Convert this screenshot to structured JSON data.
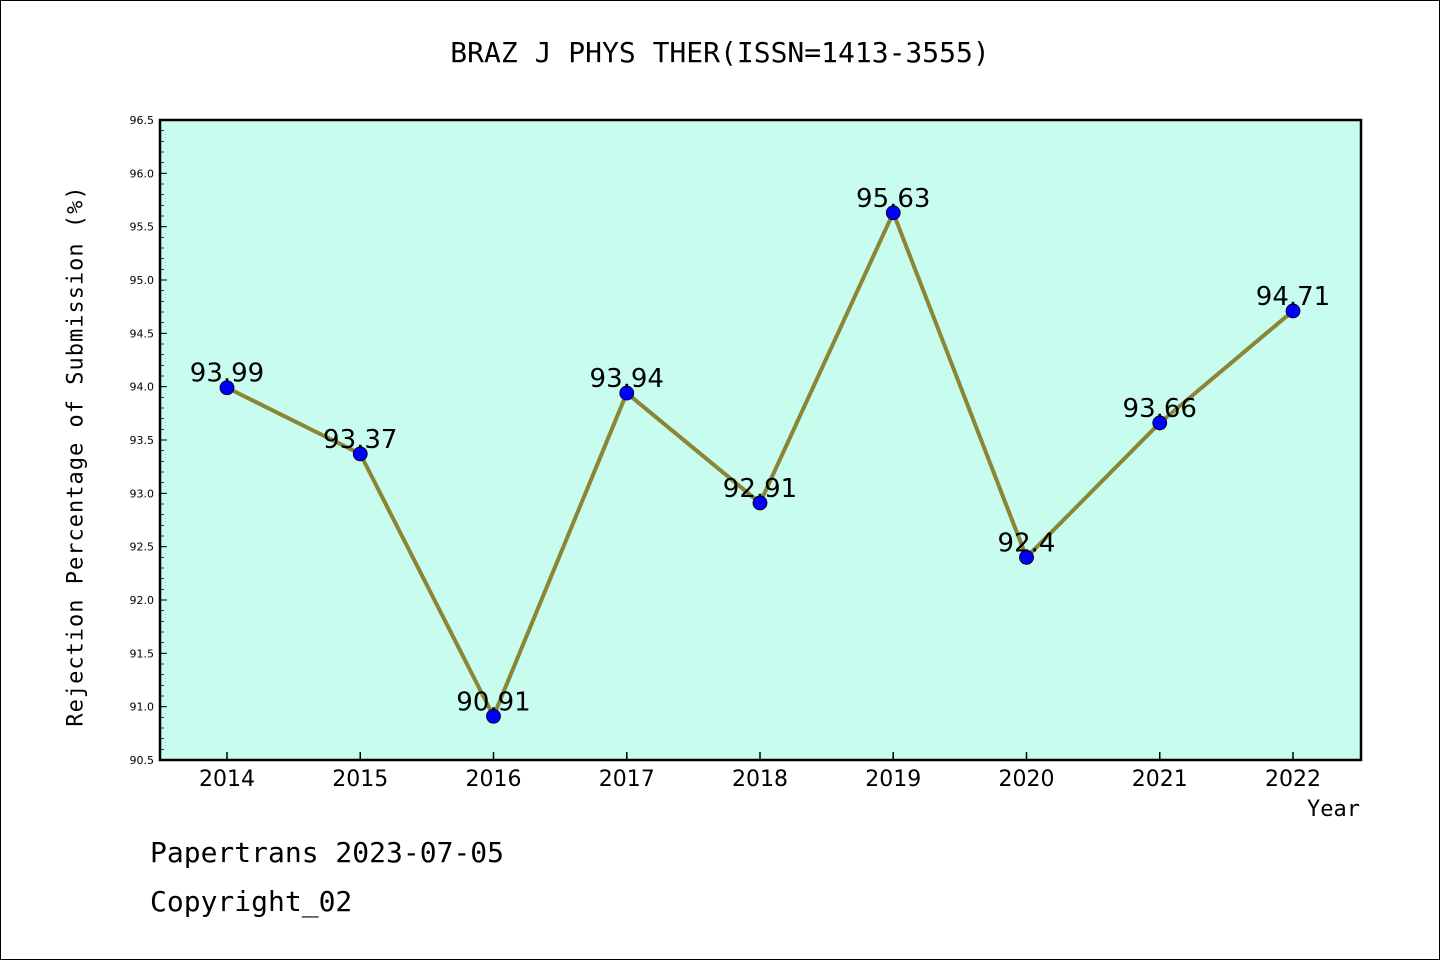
{
  "chart_data": {
    "type": "line",
    "title": "BRAZ J PHYS THER(ISSN=1413-3555)",
    "xlabel": "Year",
    "ylabel": "Rejection Percentage of Submission (%)",
    "x": [
      "2014",
      "2015",
      "2016",
      "2017",
      "2018",
      "2019",
      "2020",
      "2021",
      "2022"
    ],
    "values": [
      93.99,
      93.37,
      90.91,
      93.94,
      92.91,
      95.63,
      92.4,
      93.66,
      94.71
    ],
    "data_labels": [
      "93.99",
      "93.37",
      "90.91",
      "93.94",
      "92.91",
      "95.63",
      "92.4",
      "93.66",
      "94.71"
    ],
    "ylim": [
      90.5,
      96.5
    ],
    "yticks": [
      "90.5",
      "91.0",
      "91.5",
      "92.0",
      "92.5",
      "93.0",
      "93.5",
      "94.0",
      "94.5",
      "95.0",
      "95.5",
      "96.0",
      "96.5"
    ],
    "grid": false,
    "colors": {
      "plot_background": "#c8fcee",
      "line": "#8b8536",
      "marker": "#0000ff"
    }
  },
  "footer": {
    "line1": "Papertrans 2023-07-05",
    "line2": "Copyright_02"
  }
}
